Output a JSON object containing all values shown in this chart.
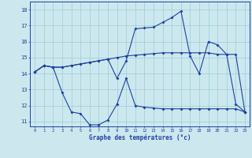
{
  "xlabel": "Graphe des températures (°c)",
  "hours": [
    0,
    1,
    2,
    3,
    4,
    5,
    6,
    7,
    8,
    9,
    10,
    11,
    12,
    13,
    14,
    15,
    16,
    17,
    18,
    19,
    20,
    21,
    22,
    23
  ],
  "line_flat": [
    14.1,
    14.5,
    14.4,
    14.4,
    14.5,
    14.6,
    14.7,
    14.8,
    14.9,
    15.0,
    15.1,
    15.15,
    15.2,
    15.25,
    15.3,
    15.3,
    15.3,
    15.3,
    15.3,
    15.3,
    15.2,
    15.2,
    15.2,
    11.6
  ],
  "line_high": [
    14.1,
    14.5,
    14.4,
    14.4,
    14.5,
    14.6,
    14.7,
    14.8,
    14.9,
    13.7,
    14.8,
    16.8,
    16.85,
    16.9,
    17.2,
    17.5,
    17.9,
    15.1,
    14.0,
    16.0,
    15.8,
    15.2,
    12.1,
    11.6
  ],
  "line_low": [
    14.1,
    14.5,
    14.4,
    12.8,
    11.6,
    11.5,
    10.8,
    10.8,
    11.1,
    12.1,
    13.7,
    12.0,
    11.9,
    11.85,
    11.8,
    11.8,
    11.8,
    11.8,
    11.8,
    11.8,
    11.8,
    11.8,
    11.8,
    11.6
  ],
  "bg_color": "#cce8ee",
  "line_color": "#2040a0",
  "grid_color": "#99ccd5",
  "ylim_min": 10.7,
  "ylim_max": 18.5,
  "yticks": [
    11,
    12,
    13,
    14,
    15,
    16,
    17,
    18
  ]
}
